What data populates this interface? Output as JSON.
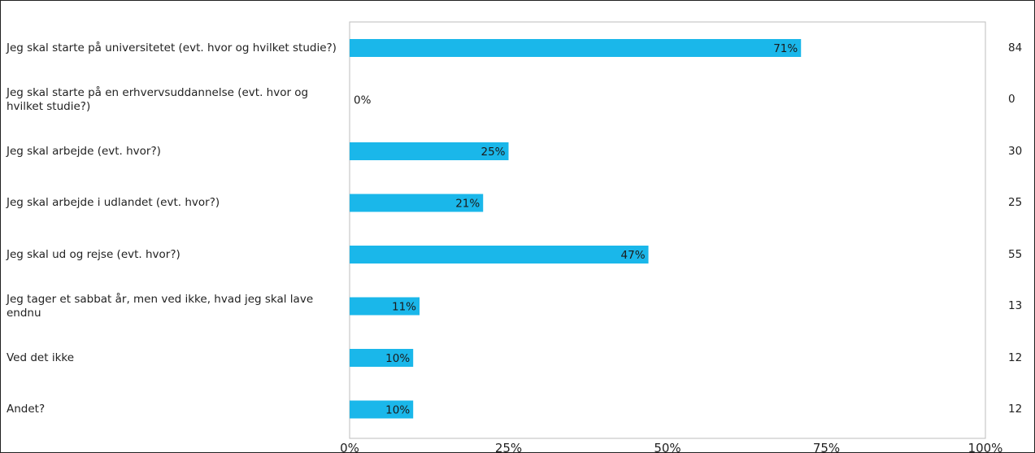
{
  "chart_data": {
    "type": "bar",
    "orientation": "horizontal",
    "categories": [
      "Jeg skal starte på universitetet (evt. hvor og hvilket studie?)",
      "Jeg skal starte på en erhvervsuddannelse (evt. hvor og hvilket studie?)",
      "Jeg skal arbejde (evt. hvor?)",
      "Jeg skal arbejde i udlandet (evt. hvor?)",
      "Jeg skal ud og rejse (evt. hvor?)",
      "Jeg tager et sabbat år, men ved ikke, hvad jeg skal lave endnu",
      "Ved det ikke",
      "Andet?"
    ],
    "values": [
      71,
      0,
      25,
      21,
      47,
      11,
      10,
      10
    ],
    "value_labels": [
      "71%",
      "0%",
      "25%",
      "21%",
      "47%",
      "11%",
      "10%",
      "10%"
    ],
    "counts": [
      "84",
      "0",
      "30",
      "25",
      "55",
      "13",
      "12",
      "12"
    ],
    "xlim": [
      0,
      100
    ],
    "xticks": [
      "0%",
      "25%",
      "50%",
      "75%",
      "100%"
    ],
    "bar_color": "#1ab7ea",
    "grid": false,
    "title": "",
    "xlabel": "",
    "ylabel": ""
  }
}
